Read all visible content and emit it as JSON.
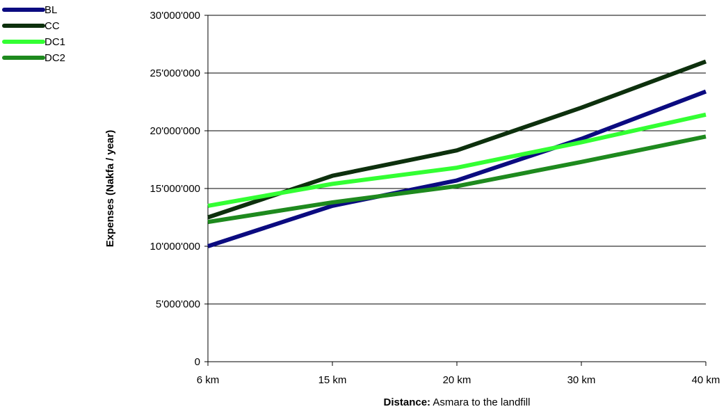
{
  "chart_data": {
    "type": "line",
    "categories": [
      "6 km",
      "15 km",
      "20 km",
      "30 km",
      "40 km"
    ],
    "series": [
      {
        "name": "BL",
        "color": "#0b0b80",
        "values": [
          10000000,
          13500000,
          15700000,
          19300000,
          23400000
        ]
      },
      {
        "name": "CC",
        "color": "#0d300d",
        "values": [
          12500000,
          16100000,
          18300000,
          22000000,
          26000000
        ]
      },
      {
        "name": "DC1",
        "color": "#33ff33",
        "values": [
          13500000,
          15400000,
          16800000,
          19000000,
          21400000
        ]
      },
      {
        "name": "DC2",
        "color": "#1e8a1e",
        "values": [
          12100000,
          13800000,
          15200000,
          17300000,
          19500000
        ]
      }
    ],
    "yticks": [
      {
        "value": 0,
        "label": "0"
      },
      {
        "value": 5000000,
        "label": "5'000'000"
      },
      {
        "value": 10000000,
        "label": "10'000'000"
      },
      {
        "value": 15000000,
        "label": "15'000'000"
      },
      {
        "value": 20000000,
        "label": "20'000'000"
      },
      {
        "value": 25000000,
        "label": "25'000'000"
      },
      {
        "value": 30000000,
        "label": "30'000'000"
      }
    ],
    "ylim": [
      0,
      30000000
    ],
    "ylabel": "Expenses (Nakfa / year)",
    "xlabel_bold": "Distance:",
    "xlabel_rest": " Asmara to the landfill",
    "grid": "horizontal",
    "legend_position": "top-left"
  }
}
